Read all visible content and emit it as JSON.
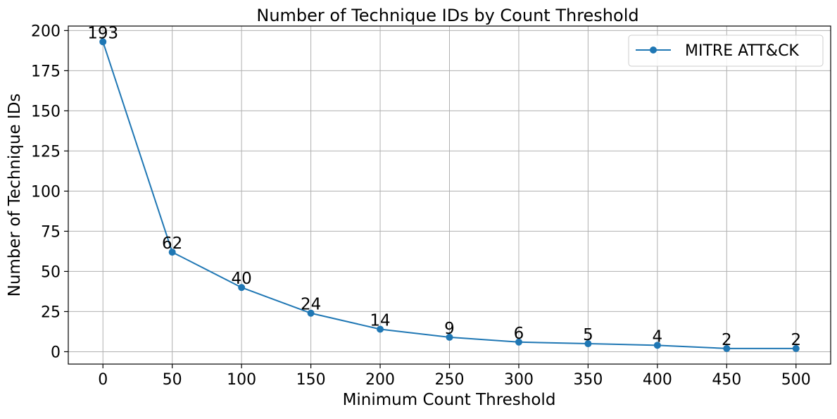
{
  "chart_data": {
    "type": "line",
    "title": "Number of Technique IDs by Count Threshold",
    "xlabel": "Minimum Count Threshold",
    "ylabel": "Number of Technique IDs",
    "x": [
      0,
      50,
      100,
      150,
      200,
      250,
      300,
      350,
      400,
      450,
      500
    ],
    "series": [
      {
        "name": "MITRE ATT&CK",
        "color": "#1f77b4",
        "marker": "circle",
        "values": [
          193,
          62,
          40,
          24,
          14,
          9,
          6,
          5,
          4,
          2,
          2
        ]
      }
    ],
    "xticks": [
      0,
      50,
      100,
      150,
      200,
      250,
      300,
      350,
      400,
      450,
      500
    ],
    "yticks": [
      0,
      25,
      50,
      75,
      100,
      125,
      150,
      175,
      200
    ],
    "xlim": [
      -25,
      525
    ],
    "ylim": [
      -7.7,
      202.8
    ],
    "grid": true,
    "legend_position": "top-right",
    "data_labels": true
  }
}
